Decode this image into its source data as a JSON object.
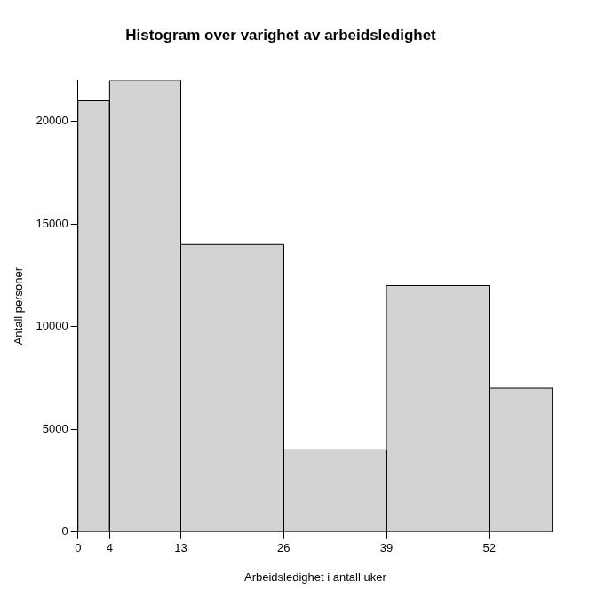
{
  "chart_data": {
    "type": "histogram",
    "title": "Histogram over varighet av arbeidsledighet",
    "x_label": "Arbeidsledighet i antall uker",
    "y_label": "Antall personer",
    "bins": [
      0,
      4,
      13,
      26,
      39,
      52,
      60
    ],
    "values": [
      21000,
      22000,
      14000,
      4000,
      12000,
      7000
    ],
    "color": "#d3d3d3",
    "xlim": [
      0,
      60
    ],
    "ylim": [
      0,
      22000
    ],
    "xticks": [
      0,
      4,
      13,
      26,
      39,
      52
    ],
    "yticks": [
      0,
      5000,
      10000,
      15000,
      20000
    ],
    "grid": false
  }
}
